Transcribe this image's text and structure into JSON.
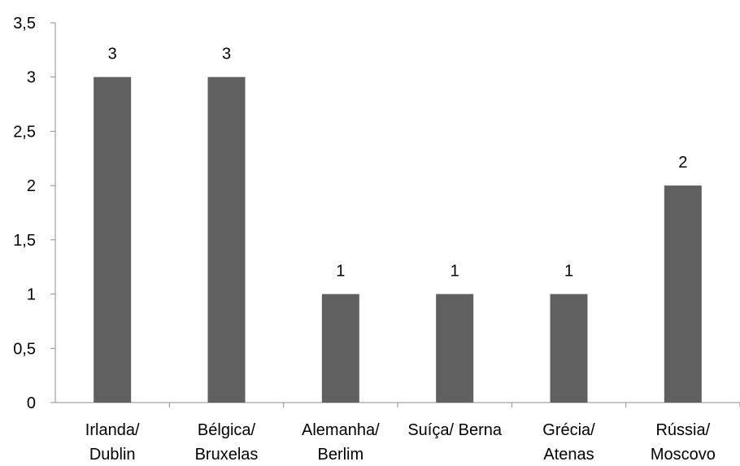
{
  "chart_data": {
    "type": "bar",
    "title": "",
    "xlabel": "",
    "ylabel": "",
    "categories": [
      [
        "Irlanda/",
        "Dublin"
      ],
      [
        "Bélgica/",
        "Bruxelas"
      ],
      [
        "Alemanha/",
        "Berlim"
      ],
      [
        "Suíça/ Berna"
      ],
      [
        "Grécia/",
        "Atenas"
      ],
      [
        "Rússia/",
        "Moscovo"
      ]
    ],
    "values": [
      3,
      3,
      1,
      1,
      1,
      2
    ],
    "data_labels": [
      "3",
      "3",
      "1",
      "1",
      "1",
      "2"
    ],
    "ylim": [
      0,
      3.5
    ],
    "yticks": [
      0,
      0.5,
      1,
      1.5,
      2,
      2.5,
      3,
      3.5
    ],
    "ytick_labels": [
      "0",
      "0,5",
      "1",
      "1,5",
      "2",
      "2,5",
      "3",
      "3,5"
    ],
    "grid": false,
    "legend": false,
    "bar_color": "#606060",
    "axis_color": "#8c8c8c"
  }
}
